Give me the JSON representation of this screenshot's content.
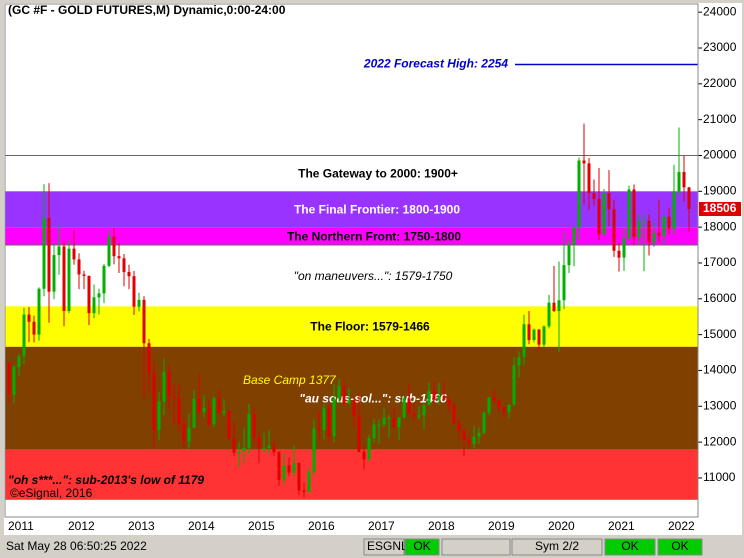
{
  "chart_data": {
    "type": "candlestick",
    "title": "(GC #F - GOLD FUTURES,M) Dynamic,0:00-24:00",
    "categories": [
      "2011",
      null,
      null,
      null,
      null,
      null,
      null,
      null,
      null,
      null,
      null,
      null,
      "2012",
      null,
      null,
      null,
      null,
      null,
      null,
      null,
      null,
      null,
      null,
      null,
      "2013",
      null,
      null,
      null,
      null,
      null,
      null,
      null,
      null,
      null,
      null,
      null,
      "2014",
      null,
      null,
      null,
      null,
      null,
      null,
      null,
      null,
      null,
      null,
      null,
      "2015",
      null,
      null,
      null,
      null,
      null,
      null,
      null,
      null,
      null,
      null,
      null,
      "2016",
      null,
      null,
      null,
      null,
      null,
      null,
      null,
      null,
      null,
      null,
      null,
      "2017",
      null,
      null,
      null,
      null,
      null,
      null,
      null,
      null,
      null,
      null,
      null,
      "2018",
      null,
      null,
      null,
      null,
      null,
      null,
      null,
      null,
      null,
      null,
      null,
      "2019",
      null,
      null,
      null,
      null,
      null,
      null,
      null,
      null,
      null,
      null,
      null,
      "2020",
      null,
      null,
      null,
      null,
      null,
      null,
      null,
      null,
      null,
      null,
      null,
      "2021",
      null,
      null,
      null,
      null,
      null,
      null,
      null,
      null,
      null,
      null,
      null,
      "2022",
      null,
      null,
      null,
      null
    ],
    "open": [
      14210,
      13320,
      14100,
      14390,
      15560,
      15360,
      15000,
      16280,
      18260,
      16200,
      17220,
      17460,
      15660,
      17400,
      17100,
      16680,
      16640,
      15600,
      16040,
      16150,
      16920,
      17740,
      17190,
      17130,
      16750,
      16630,
      15780,
      15970,
      14760,
      13930,
      12340,
      13130,
      13960,
      13270,
      13230,
      12500,
      12020,
      12400,
      13210,
      12840,
      12960,
      12500,
      13220,
      12820,
      12870,
      12100,
      11710,
      11750,
      11840,
      12790,
      12130,
      11830,
      11840,
      11900,
      11720,
      10950,
      11350,
      11150,
      11420,
      10650,
      10610,
      11170,
      12380,
      12340,
      12940,
      12160,
      13220,
      13570,
      13090,
      13160,
      12720,
      11730,
      11520,
      12110,
      12490,
      12490,
      12680,
      12680,
      12420,
      12690,
      13220,
      12800,
      12710,
      12750,
      13030,
      13430,
      13180,
      13270,
      13180,
      13050,
      12530,
      12330,
      12060,
      11950,
      12150,
      12260,
      12820,
      13250,
      13160,
      12980,
      12850,
      13050,
      14140,
      14370,
      15290,
      14850,
      15140,
      14720,
      15230,
      15890,
      15660,
      15960,
      16940,
      17510,
      18000,
      19860,
      19780,
      18950,
      18790,
      17800,
      18950,
      18500,
      17340,
      17150,
      17690,
      19050,
      17710,
      18170,
      18180,
      17570,
      17840,
      17760,
      18290,
      17960,
      19000,
      19540,
      19110
    ],
    "high": [
      14240,
      14160,
      14470,
      15750,
      15770,
      15530,
      16320,
      19200,
      19230,
      17550,
      18040,
      17620,
      17630,
      17900,
      17270,
      16780,
      16650,
      16400,
      16280,
      16970,
      17900,
      17980,
      17550,
      17250,
      16950,
      16780,
      16170,
      16070,
      14880,
      14240,
      13390,
      14340,
      14150,
      13610,
      13620,
      12680,
      12800,
      13450,
      13920,
      13310,
      13150,
      13280,
      13460,
      13200,
      12900,
      12560,
      12000,
      12380,
      13070,
      12960,
      12240,
      12250,
      12330,
      12050,
      11750,
      11700,
      11580,
      11910,
      11430,
      10880,
      11270,
      12630,
      12870,
      13060,
      13040,
      13620,
      13770,
      13750,
      13500,
      13260,
      13380,
      11920,
      12200,
      12640,
      12640,
      12950,
      12760,
      12960,
      12700,
      13310,
      13620,
      13060,
      12990,
      13070,
      13660,
      13690,
      13650,
      13690,
      13260,
      13090,
      12650,
      12370,
      12140,
      12460,
      12420,
      12850,
      13260,
      13470,
      13200,
      13000,
      13050,
      14380,
      14530,
      15560,
      15660,
      15170,
      15160,
      15260,
      16110,
      16920,
      17040,
      17880,
      17650,
      18010,
      19940,
      20890,
      19930,
      19330,
      19650,
      19060,
      19590,
      18760,
      17560,
      17980,
      19160,
      19190,
      18370,
      18340,
      18360,
      18140,
      18770,
      18310,
      18530,
      19740,
      20780,
      19990,
      19120
    ],
    "low": [
      13080,
      13090,
      13840,
      14170,
      14790,
      14780,
      14830,
      16070,
      15330,
      15990,
      16670,
      15230,
      15600,
      16950,
      16270,
      16270,
      15270,
      15460,
      15560,
      15880,
      16880,
      16960,
      16720,
      16350,
      16270,
      15550,
      15650,
      13210,
      13380,
      11800,
      12060,
      12760,
      12920,
      12510,
      12270,
      11800,
      11820,
      12380,
      12770,
      12680,
      12400,
      12400,
      12800,
      12720,
      12050,
      11610,
      11310,
      11420,
      11670,
      11900,
      11410,
      11700,
      11690,
      11620,
      10770,
      10800,
      11050,
      11040,
      10520,
      10450,
      10580,
      11070,
      12090,
      12080,
      11990,
      12000,
      13090,
      13020,
      13050,
      12410,
      11710,
      11240,
      11460,
      12000,
      11950,
      12420,
      12140,
      12380,
      12050,
      12650,
      12790,
      12600,
      12640,
      12360,
      13020,
      13060,
      13030,
      13140,
      12820,
      12500,
      12110,
      11600,
      11820,
      11820,
      11960,
      12210,
      12750,
      13070,
      12850,
      12660,
      12680,
      13010,
      13810,
      14150,
      14730,
      14780,
      14560,
      14660,
      15170,
      15630,
      14510,
      15710,
      16720,
      16910,
      17640,
      18630,
      18480,
      18600,
      17640,
      17760,
      18030,
      17170,
      16760,
      16780,
      17650,
      17500,
      17500,
      16770,
      17210,
      17450,
      17580,
      17530,
      17800,
      17800,
      18900,
      18720,
      17860
    ],
    "close": [
      13320,
      14100,
      14390,
      15560,
      15360,
      15000,
      16280,
      18260,
      16200,
      17220,
      17460,
      15660,
      17400,
      17100,
      16680,
      16640,
      15600,
      16040,
      16150,
      16920,
      17740,
      17190,
      17130,
      16750,
      16630,
      15780,
      15970,
      14760,
      13930,
      12340,
      13130,
      13960,
      13270,
      13230,
      12500,
      12020,
      12400,
      13210,
      12840,
      12960,
      12500,
      13220,
      12820,
      12870,
      12100,
      11710,
      11750,
      11840,
      12790,
      12130,
      11830,
      11840,
      11900,
      11720,
      10950,
      11350,
      11150,
      11420,
      10650,
      10610,
      11170,
      12380,
      12340,
      12940,
      12160,
      13220,
      13570,
      13090,
      13160,
      12720,
      11730,
      11520,
      12110,
      12490,
      12490,
      12680,
      12680,
      12420,
      12690,
      13220,
      12800,
      12710,
      12750,
      13030,
      13430,
      13180,
      13270,
      13180,
      13050,
      12530,
      12330,
      12060,
      11950,
      12150,
      12260,
      12820,
      13250,
      13160,
      12980,
      12850,
      13050,
      14140,
      14370,
      15290,
      14850,
      15140,
      14720,
      15230,
      15890,
      15660,
      15960,
      16940,
      17510,
      18000,
      19860,
      19780,
      18950,
      18790,
      17800,
      18950,
      18500,
      17340,
      17150,
      17690,
      19050,
      17710,
      18170,
      18180,
      17570,
      17840,
      17760,
      18290,
      17960,
      19000,
      19540,
      19110,
      18506
    ],
    "up_color": "#00b000",
    "down_color": "#e00000",
    "ylim": [
      9910,
      24200
    ],
    "yticks": [
      11000,
      12000,
      13000,
      14000,
      15000,
      16000,
      17000,
      18000,
      19000,
      20000,
      21000,
      22000,
      23000,
      24000
    ],
    "last_price": 18506,
    "last_price_color": "#e00000",
    "bands": [
      {
        "label": "The Gateway to 2000:  1900+",
        "low": 19000,
        "high": 20000,
        "color": "#ffffff",
        "text_color": "#000000"
      },
      {
        "label": "The Final Frontier:  1800-1900",
        "low": 18000,
        "high": 19000,
        "color": "#9933ff",
        "text_color": "#ffffff"
      },
      {
        "label": "The Northern Front:  1750-1800",
        "low": 17500,
        "high": 18000,
        "color": "#ff00ff",
        "text_color": "#000000"
      },
      {
        "label": "\"on maneuvers...\":  1579-1750",
        "low": 15790,
        "high": 17500,
        "color": "#ffffff",
        "text_color": "#000000"
      },
      {
        "label": "The Floor:  1579-1466",
        "low": 14660,
        "high": 15790,
        "color": "#ffff00",
        "text_color": "#000000"
      },
      {
        "label": "\"au sous-sol...\":  sub-1466",
        "low": 11790,
        "high": 14660,
        "color": "#804000",
        "text_color": "#ffffff"
      },
      {
        "label": "\"oh s***...\":  sub-2013's low of 1179",
        "low": 10390,
        "high": 11790,
        "color": "#ff3333",
        "text_color": "#000000"
      }
    ],
    "forecast": {
      "label": "2022 Forecast High:  2254",
      "value": 22540,
      "color": "#0000cc"
    },
    "note": "Base Camp 1377",
    "copyright": "©eSignal, 2016"
  },
  "status_bar": {
    "datetime": "Sat May 28 06:50:25 2022",
    "feed": "ESGNL:",
    "feed_status": "OK",
    "sym": "Sym 2/2",
    "status_1": "OK",
    "status_2": "OK"
  }
}
